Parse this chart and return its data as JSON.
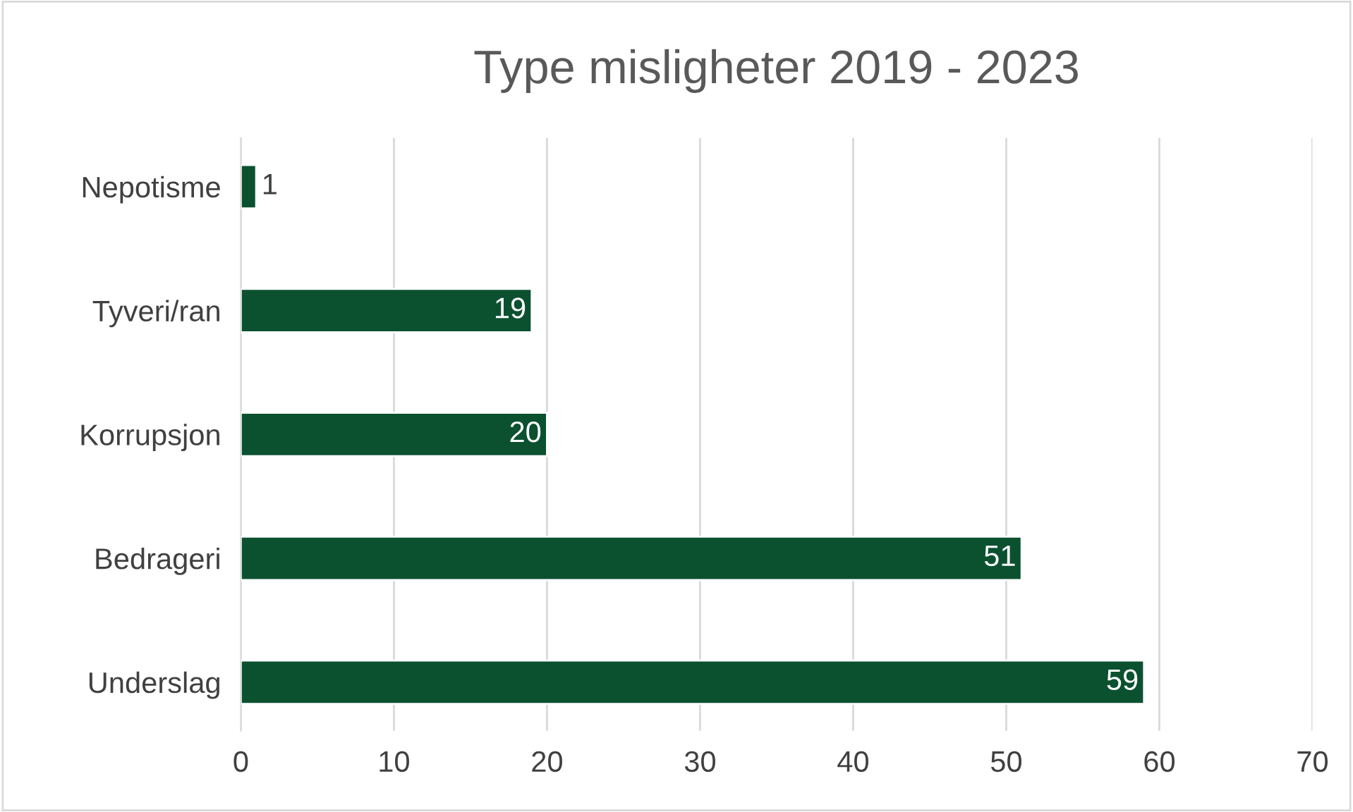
{
  "chart_data": {
    "type": "bar",
    "orientation": "horizontal",
    "title": "Type misligheter 2019 - 2023",
    "categories": [
      "Nepotisme",
      "Tyveri/ran",
      "Korrupsjon",
      "Bedrageri",
      "Underslag"
    ],
    "values": [
      1,
      19,
      20,
      51,
      59
    ],
    "color": "#0b5130",
    "xlim": [
      0,
      70
    ],
    "xticks": [
      0,
      10,
      20,
      30,
      40,
      50,
      60,
      70
    ],
    "grid": "x",
    "data_labels": true
  }
}
